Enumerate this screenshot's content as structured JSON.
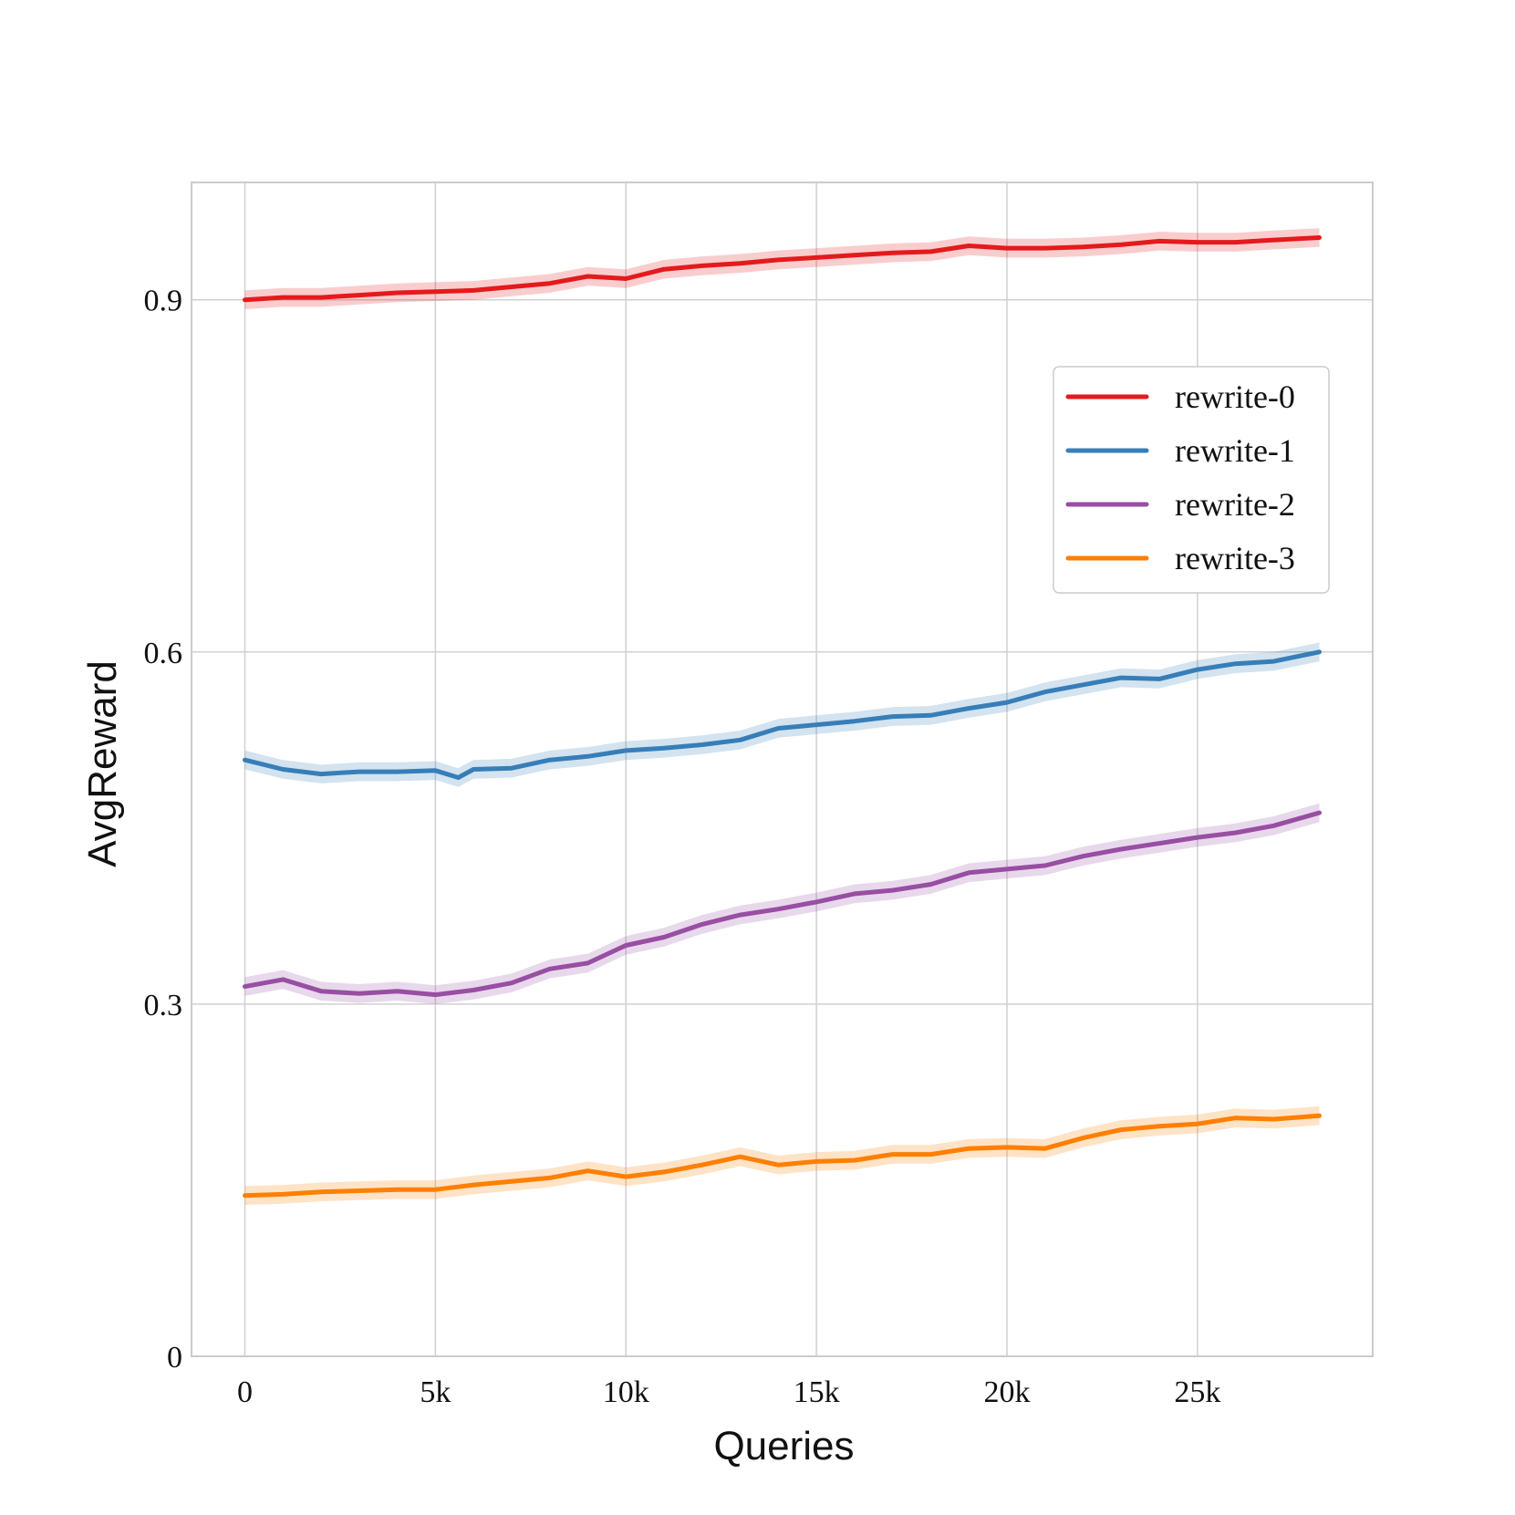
{
  "chart_data": {
    "type": "line",
    "title": "",
    "xlabel": "Queries",
    "ylabel": "AvgReward",
    "xlim": [
      -1400,
      29600
    ],
    "ylim": [
      0,
      1.0
    ],
    "xticks": [
      0,
      5000,
      10000,
      15000,
      20000,
      25000
    ],
    "xtick_labels": [
      "0",
      "5k",
      "10k",
      "15k",
      "20k",
      "25k"
    ],
    "yticks": [
      0,
      0.3,
      0.6,
      0.9
    ],
    "ytick_labels": [
      "0",
      "0.3",
      "0.6",
      "0.9"
    ],
    "grid": true,
    "legend_position": "upper-right",
    "colors": {
      "rewrite-0": "#e41a1c",
      "rewrite-1": "#377eb8",
      "rewrite-2": "#984ea3",
      "rewrite-3": "#ff7f00",
      "grid": "#d0d0d0",
      "frame": "#cccccc"
    },
    "band_halfwidth": 0.008,
    "series": [
      {
        "name": "rewrite-0",
        "color": "#e41a1c",
        "x": [
          0,
          1000,
          2000,
          3000,
          4000,
          5000,
          6000,
          7000,
          8000,
          9000,
          10000,
          11000,
          12000,
          13000,
          14000,
          15000,
          16000,
          17000,
          18000,
          19000,
          20000,
          21000,
          22000,
          23000,
          24000,
          25000,
          26000,
          27000,
          28200
        ],
        "values": [
          0.9,
          0.902,
          0.902,
          0.904,
          0.906,
          0.907,
          0.908,
          0.911,
          0.914,
          0.92,
          0.918,
          0.926,
          0.929,
          0.931,
          0.934,
          0.936,
          0.938,
          0.94,
          0.941,
          0.946,
          0.944,
          0.944,
          0.945,
          0.947,
          0.95,
          0.949,
          0.949,
          0.951,
          0.953
        ]
      },
      {
        "name": "rewrite-1",
        "color": "#377eb8",
        "x": [
          0,
          1000,
          2000,
          3000,
          4000,
          5000,
          5600,
          6000,
          7000,
          8000,
          9000,
          10000,
          11000,
          12000,
          13000,
          14000,
          15000,
          16000,
          17000,
          18000,
          19000,
          20000,
          21000,
          22000,
          23000,
          24000,
          25000,
          26000,
          27000,
          28200
        ],
        "values": [
          0.508,
          0.5,
          0.496,
          0.498,
          0.498,
          0.499,
          0.493,
          0.5,
          0.501,
          0.508,
          0.511,
          0.516,
          0.518,
          0.521,
          0.525,
          0.535,
          0.538,
          0.541,
          0.545,
          0.546,
          0.552,
          0.557,
          0.566,
          0.572,
          0.578,
          0.577,
          0.585,
          0.59,
          0.592,
          0.6
        ]
      },
      {
        "name": "rewrite-2",
        "color": "#984ea3",
        "x": [
          0,
          1000,
          2000,
          3000,
          4000,
          5000,
          6000,
          7000,
          8000,
          9000,
          10000,
          11000,
          12000,
          13000,
          14000,
          15000,
          16000,
          17000,
          18000,
          19000,
          20000,
          21000,
          22000,
          23000,
          24000,
          25000,
          26000,
          27000,
          28200
        ],
        "values": [
          0.315,
          0.321,
          0.311,
          0.309,
          0.311,
          0.308,
          0.312,
          0.318,
          0.33,
          0.335,
          0.35,
          0.357,
          0.368,
          0.376,
          0.381,
          0.387,
          0.394,
          0.397,
          0.402,
          0.412,
          0.415,
          0.418,
          0.426,
          0.432,
          0.437,
          0.442,
          0.446,
          0.452,
          0.463
        ]
      },
      {
        "name": "rewrite-3",
        "color": "#ff7f00",
        "x": [
          0,
          1000,
          2000,
          3000,
          4000,
          5000,
          6000,
          7000,
          8000,
          9000,
          10000,
          11000,
          12000,
          13000,
          14000,
          15000,
          16000,
          17000,
          18000,
          19000,
          20000,
          21000,
          22000,
          23000,
          24000,
          25000,
          26000,
          27000,
          28200
        ],
        "values": [
          0.137,
          0.138,
          0.14,
          0.141,
          0.142,
          0.142,
          0.146,
          0.149,
          0.152,
          0.158,
          0.153,
          0.157,
          0.163,
          0.17,
          0.163,
          0.166,
          0.167,
          0.172,
          0.172,
          0.177,
          0.178,
          0.177,
          0.186,
          0.193,
          0.196,
          0.198,
          0.203,
          0.202,
          0.205
        ]
      }
    ]
  }
}
